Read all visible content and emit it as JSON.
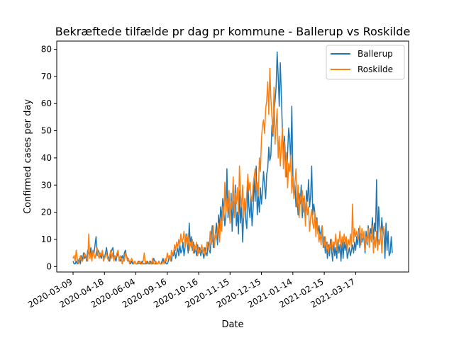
{
  "chart_data": {
    "type": "line",
    "title": "Bekræftede tilfælde pr dag pr kommune - Ballerup vs Roskilde",
    "xlabel": "Date",
    "ylabel": "Confirmed cases per day",
    "ylim": [
      -2,
      83
    ],
    "yticks": [
      0,
      10,
      20,
      30,
      40,
      50,
      60,
      70,
      80
    ],
    "xticks": [
      "2020-03-09",
      "2020-04-18",
      "2020-06-04",
      "2020-09-16",
      "2020-10-16",
      "2020-11-15",
      "2020-12-15",
      "2021-01-14",
      "2021-02-15",
      "2021-03-17"
    ],
    "legend": {
      "placement": "top-right"
    },
    "grid": false,
    "colors": {
      "Ballerup": "#1f77b4",
      "Roskilde": "#ff7f0e"
    },
    "x_axis_type": "categorical (one tick every 30 observations)",
    "series": [
      {
        "name": "Ballerup",
        "values": [
          2,
          1,
          1,
          2,
          1,
          2,
          3,
          1,
          4,
          2,
          5,
          3,
          4,
          2,
          6,
          5,
          4,
          7,
          3,
          6,
          5,
          8,
          11,
          4,
          6,
          5,
          4,
          3,
          5,
          4,
          3,
          5,
          7,
          4,
          3,
          2,
          5,
          6,
          7,
          4,
          3,
          2,
          4,
          5,
          3,
          2,
          3,
          4,
          2,
          5,
          6,
          4,
          3,
          2,
          2,
          1,
          2,
          1,
          1,
          2,
          1,
          1,
          1,
          2,
          1,
          1,
          2,
          1,
          1,
          1,
          1,
          2,
          1,
          1,
          2,
          1,
          1,
          3,
          2,
          1,
          1,
          1,
          2,
          1,
          1,
          2,
          3,
          1,
          2,
          1,
          1,
          2,
          4,
          3,
          2,
          5,
          4,
          6,
          3,
          5,
          7,
          4,
          8,
          5,
          6,
          9,
          4,
          7,
          12,
          9,
          5,
          16,
          8,
          11,
          6,
          9,
          5,
          7,
          4,
          8,
          5,
          7,
          4,
          6,
          5,
          3,
          7,
          5,
          4,
          9,
          6,
          5,
          11,
          15,
          7,
          9,
          12,
          16,
          8,
          19,
          14,
          22,
          17,
          25,
          21,
          15,
          19,
          36,
          18,
          22,
          16,
          27,
          13,
          24,
          18,
          30,
          15,
          20,
          12,
          28,
          16,
          23,
          9,
          19,
          25,
          17,
          14,
          31,
          22,
          18,
          26,
          15,
          21,
          33,
          24,
          37,
          19,
          26,
          20,
          29,
          23,
          28,
          35,
          30,
          25,
          34,
          36,
          44,
          39,
          41,
          52,
          48,
          57,
          61,
          66,
          79,
          70,
          59,
          75,
          63,
          50,
          42,
          48,
          39,
          33,
          42,
          51,
          47,
          38,
          59,
          34,
          26,
          30,
          22,
          26,
          19,
          27,
          23,
          30,
          18,
          25,
          21,
          17,
          28,
          24,
          32,
          22,
          26,
          37,
          19,
          23,
          20,
          14,
          18,
          12,
          15,
          11,
          13,
          15,
          7,
          11,
          5,
          9,
          3,
          8,
          4,
          10,
          6,
          2,
          9,
          4,
          7,
          3,
          10,
          5,
          8,
          2,
          10,
          3,
          9,
          6,
          9,
          3,
          5,
          7,
          4,
          6,
          8,
          5,
          9,
          6,
          11,
          8,
          14,
          7,
          12,
          9,
          11,
          10,
          5,
          13,
          8,
          15,
          9,
          14,
          12,
          18,
          10,
          16,
          13,
          32,
          9,
          22,
          15,
          11,
          18,
          12,
          14,
          3,
          16,
          6,
          13,
          4,
          5,
          11,
          5
        ],
        "values_note": "read approximately off the plot"
      },
      {
        "name": "Roskilde",
        "values": [
          3,
          4,
          2,
          6,
          3,
          1,
          2,
          4,
          3,
          2,
          3,
          5,
          4,
          3,
          2,
          12,
          3,
          5,
          2,
          6,
          4,
          3,
          5,
          7,
          4,
          3,
          5,
          4,
          6,
          2,
          3,
          4,
          5,
          3,
          2,
          4,
          6,
          3,
          5,
          2,
          4,
          3,
          5,
          6,
          2,
          4,
          3,
          1,
          3,
          2,
          5,
          4,
          2,
          3,
          1,
          2,
          3,
          2,
          1,
          2,
          1,
          1,
          2,
          1,
          2,
          1,
          1,
          2,
          5,
          1,
          2,
          1,
          1,
          2,
          1,
          1,
          3,
          1,
          1,
          2,
          1,
          1,
          2,
          1,
          1,
          1,
          2,
          1,
          3,
          2,
          5,
          3,
          4,
          2,
          6,
          4,
          5,
          8,
          6,
          9,
          7,
          10,
          8,
          12,
          9,
          10,
          13,
          7,
          11,
          8,
          12,
          6,
          9,
          7,
          10,
          5,
          8,
          6,
          9,
          4,
          7,
          5,
          6,
          8,
          5,
          7,
          4,
          6,
          9,
          7,
          6,
          13,
          8,
          10,
          15,
          7,
          12,
          10,
          14,
          16,
          9,
          18,
          13,
          22,
          17,
          31,
          20,
          25,
          19,
          28,
          16,
          24,
          21,
          33,
          18,
          27,
          23,
          29,
          19,
          37,
          26,
          22,
          30,
          18,
          25,
          21,
          27,
          34,
          28,
          31,
          26,
          24,
          30,
          33,
          36,
          28,
          31,
          26,
          40,
          35,
          47,
          52,
          54,
          49,
          58,
          61,
          68,
          56,
          73,
          62,
          55,
          49,
          66,
          45,
          52,
          58,
          40,
          48,
          37,
          44,
          51,
          36,
          46,
          33,
          42,
          29,
          38,
          35,
          41,
          27,
          33,
          25,
          31,
          36,
          22,
          30,
          18,
          26,
          24,
          28,
          20,
          26,
          15,
          24,
          19,
          22,
          13,
          18,
          21,
          16,
          14,
          20,
          11,
          17,
          13,
          9,
          12,
          8,
          15,
          10,
          7,
          11,
          6,
          9,
          5,
          8,
          7,
          10,
          6,
          9,
          8,
          12,
          6,
          10,
          9,
          13,
          7,
          11,
          8,
          12,
          9,
          11,
          6,
          10,
          8,
          12,
          7,
          23,
          9,
          14,
          11,
          13,
          10,
          12,
          15,
          8,
          14,
          10,
          13,
          6,
          11,
          9,
          14,
          7,
          12,
          9,
          15,
          5,
          11,
          7,
          13,
          6,
          10,
          8,
          14,
          5,
          12,
          15
        ],
        "values_note": "read approximately off the plot"
      }
    ]
  }
}
